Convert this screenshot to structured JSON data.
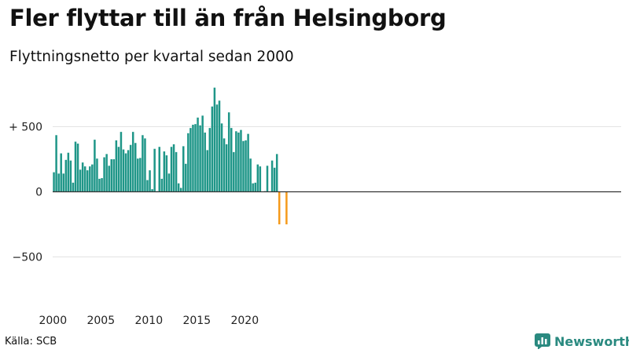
{
  "title": "Fler flyttar till än från Helsingborg",
  "subtitle": "Flyttningsnetto per kvartal sedan 2000",
  "source": "Källa: SCB",
  "brand": {
    "name": "Newsworthy",
    "icon": "newsworthy-logo-icon"
  },
  "colors": {
    "positive": "#1f9688",
    "negative": "#f59a1b",
    "grid": "#e3e3e3",
    "zero": "#333333",
    "brand": "#2a8a80"
  },
  "chart_data": {
    "type": "bar",
    "title": "Fler flyttar till än från Helsingborg",
    "subtitle": "Flyttningsnetto per kvartal sedan 2000",
    "xlabel": "",
    "ylabel": "",
    "x_start": 2000,
    "quarters_per_year": 4,
    "x_tick_labels": [
      "2000",
      "2005",
      "2010",
      "2015",
      "2020"
    ],
    "y_ticks": [
      -500,
      0,
      500
    ],
    "y_tick_labels": [
      "−500",
      "0",
      "+ 500"
    ],
    "ylim": [
      -820,
      820
    ],
    "grid": true,
    "values": [
      150,
      435,
      140,
      295,
      140,
      245,
      300,
      240,
      70,
      385,
      370,
      170,
      225,
      195,
      165,
      195,
      210,
      400,
      255,
      100,
      105,
      265,
      290,
      200,
      250,
      250,
      395,
      345,
      460,
      325,
      295,
      320,
      360,
      460,
      375,
      255,
      260,
      435,
      410,
      90,
      165,
      20,
      330,
      5,
      345,
      100,
      310,
      280,
      140,
      345,
      365,
      305,
      65,
      30,
      350,
      215,
      450,
      490,
      515,
      520,
      570,
      510,
      585,
      455,
      320,
      490,
      655,
      800,
      670,
      700,
      525,
      410,
      365,
      610,
      490,
      305,
      465,
      455,
      475,
      390,
      395,
      445,
      255,
      65,
      70,
      210,
      195,
      0,
      5,
      200,
      0,
      240,
      185,
      290,
      -250,
      0,
      0,
      -250
    ]
  }
}
